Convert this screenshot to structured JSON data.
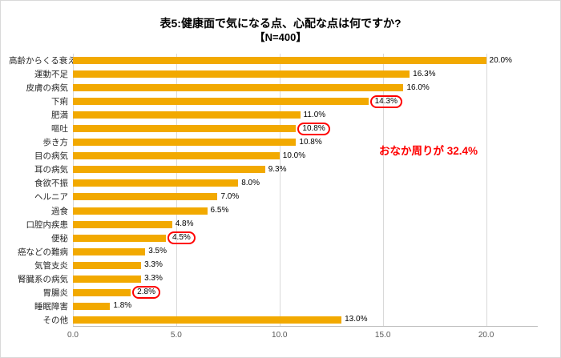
{
  "chart_data": {
    "type": "bar",
    "orientation": "horizontal",
    "title": "表5:健康面で気になる点、心配な点は何ですか?",
    "subtitle": "【N=400】",
    "categories": [
      "高齢からくる衰え",
      "運動不足",
      "皮膚の病気",
      "下痢",
      "肥満",
      "嘔吐",
      "歩き方",
      "目の病気",
      "耳の病気",
      "食欲不振",
      "ヘルニア",
      "過食",
      "口腔内疾患",
      "便秘",
      "癌などの難病",
      "気管支炎",
      "腎臓系の病気",
      "胃腸炎",
      "睡眠障害",
      "その他"
    ],
    "values": [
      20.0,
      16.3,
      16.0,
      14.3,
      11.0,
      10.8,
      10.8,
      10.0,
      9.3,
      8.0,
      7.0,
      6.5,
      4.8,
      4.5,
      3.5,
      3.3,
      3.3,
      2.8,
      1.8,
      13.0
    ],
    "value_labels": [
      "20.0%",
      "16.3%",
      "16.0%",
      "14.3%",
      "11.0%",
      "10.8%",
      "10.8%",
      "10.0%",
      "9.3%",
      "8.0%",
      "7.0%",
      "6.5%",
      "4.8%",
      "4.5%",
      "3.5%",
      "3.3%",
      "3.3%",
      "2.8%",
      "1.8%",
      "13.0%"
    ],
    "highlighted_indices": [
      3,
      5,
      13,
      17
    ],
    "x_ticks": [
      {
        "value": 0,
        "label": "0.0"
      },
      {
        "value": 5,
        "label": "5.0"
      },
      {
        "value": 10,
        "label": "10.0"
      },
      {
        "value": 15,
        "label": "15.0"
      },
      {
        "value": 20,
        "label": "20.0"
      }
    ],
    "xlim": [
      0,
      22.5
    ],
    "grid": true,
    "legend": "none",
    "bar_color": "#F2A900",
    "highlight_box_color": "#FF0000",
    "annotation": {
      "text": "おなか周りが 32.4%",
      "color": "#FF0000"
    }
  }
}
